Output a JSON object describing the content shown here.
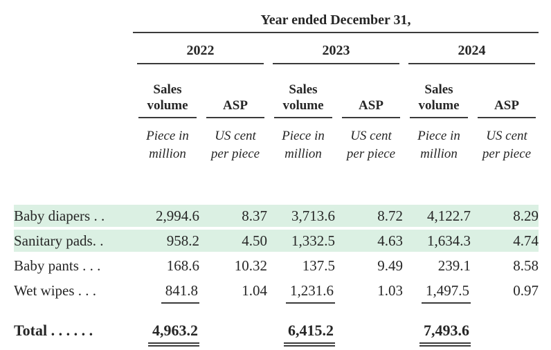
{
  "table": {
    "title": "Year ended December 31,",
    "years": [
      "2022",
      "2023",
      "2024"
    ],
    "headers": {
      "sales_volume_line1": "Sales",
      "sales_volume_line2": "volume",
      "asp": "ASP",
      "unit_volume_line1": "Piece in",
      "unit_volume_line2": "million",
      "unit_asp_line1": "US cent",
      "unit_asp_line2": "per piece"
    },
    "rows": [
      {
        "label": "Baby diapers . .",
        "values": [
          "2,994.6",
          "8.37",
          "3,713.6",
          "8.72",
          "4,122.7",
          "8.29"
        ]
      },
      {
        "label": "Sanitary pads. .",
        "values": [
          "958.2",
          "4.50",
          "1,332.5",
          "4.63",
          "1,634.3",
          "4.74"
        ]
      },
      {
        "label": "Baby pants . . .",
        "values": [
          "168.6",
          "10.32",
          "137.5",
          "9.49",
          "239.1",
          "8.58"
        ]
      },
      {
        "label": "Wet wipes  . . .",
        "values": [
          "841.8",
          "1.04",
          "1,231.6",
          "1.03",
          "1,497.5",
          "0.97"
        ]
      }
    ],
    "total": {
      "label": "Total . . . . . .",
      "values": [
        "4,963.2",
        "6,415.2",
        "7,493.6"
      ]
    },
    "highlight_color": "#dbf0e3",
    "rule_color": "#3a3a3a"
  }
}
